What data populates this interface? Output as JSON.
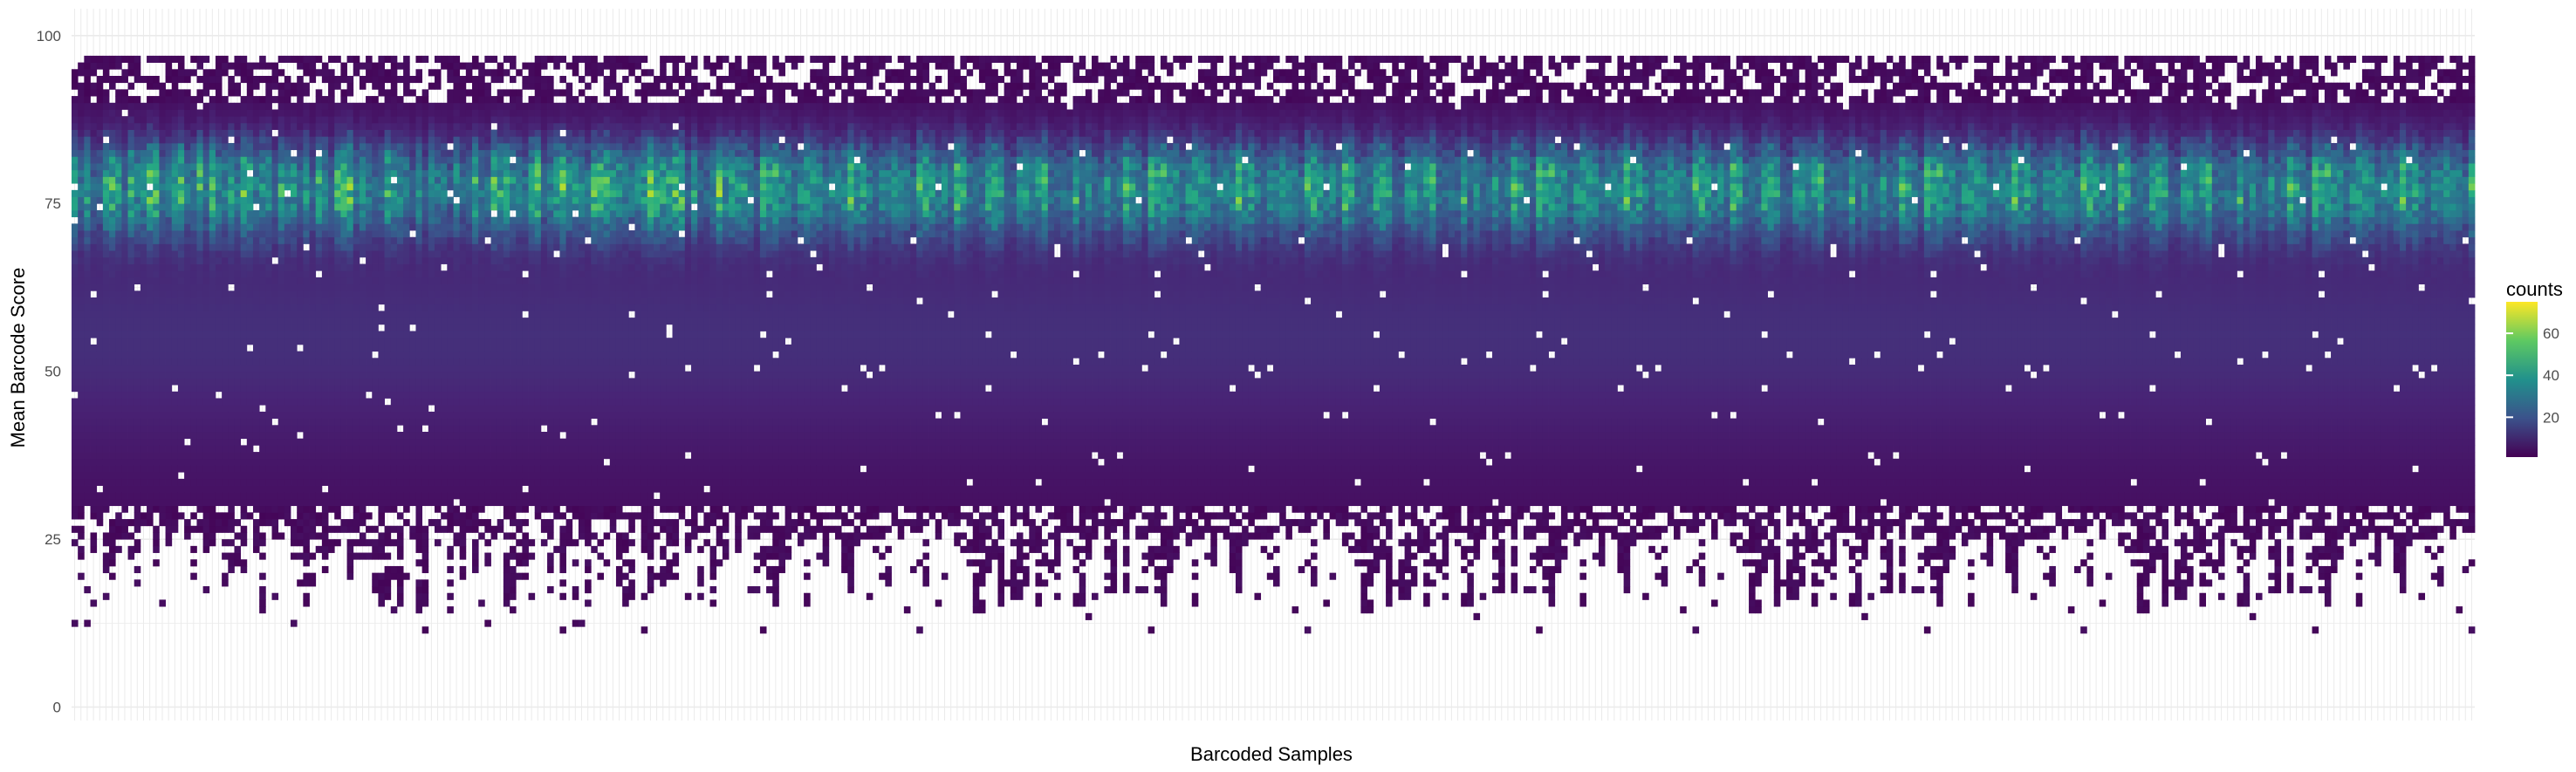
{
  "chart_data": {
    "type": "heatmap",
    "title": "",
    "xlabel": "Barcoded Samples",
    "ylabel": "Mean Barcode Score",
    "ylim": [
      -2,
      104
    ],
    "yticks": [
      0,
      25,
      50,
      75,
      100
    ],
    "x_tick_labels": "none",
    "n_samples": 384,
    "grid": true,
    "legend": {
      "title": "counts",
      "ticks": [
        20,
        40,
        60
      ],
      "range": [
        1,
        75
      ],
      "position": "right"
    },
    "colormap": "viridis",
    "colors": {
      "low": "#440154",
      "mid": "#21918c",
      "high": "#fde725",
      "background": "#ffffff",
      "grid": "#ebebeb"
    },
    "approx_distribution": {
      "score_range_per_sample": [
        11,
        100
      ],
      "dense_band": [
        30,
        96
      ],
      "peak_score": 77,
      "peak_counts_typical": [
        25,
        60
      ],
      "max_counts": 75
    }
  },
  "axes": {
    "y_tick_labels": [
      "0",
      "25",
      "50",
      "75",
      "100"
    ],
    "x_title": "Barcoded Samples",
    "y_title": "Mean Barcode Score"
  },
  "legend": {
    "title": "counts",
    "tick_labels": [
      "20",
      "40",
      "60"
    ]
  }
}
